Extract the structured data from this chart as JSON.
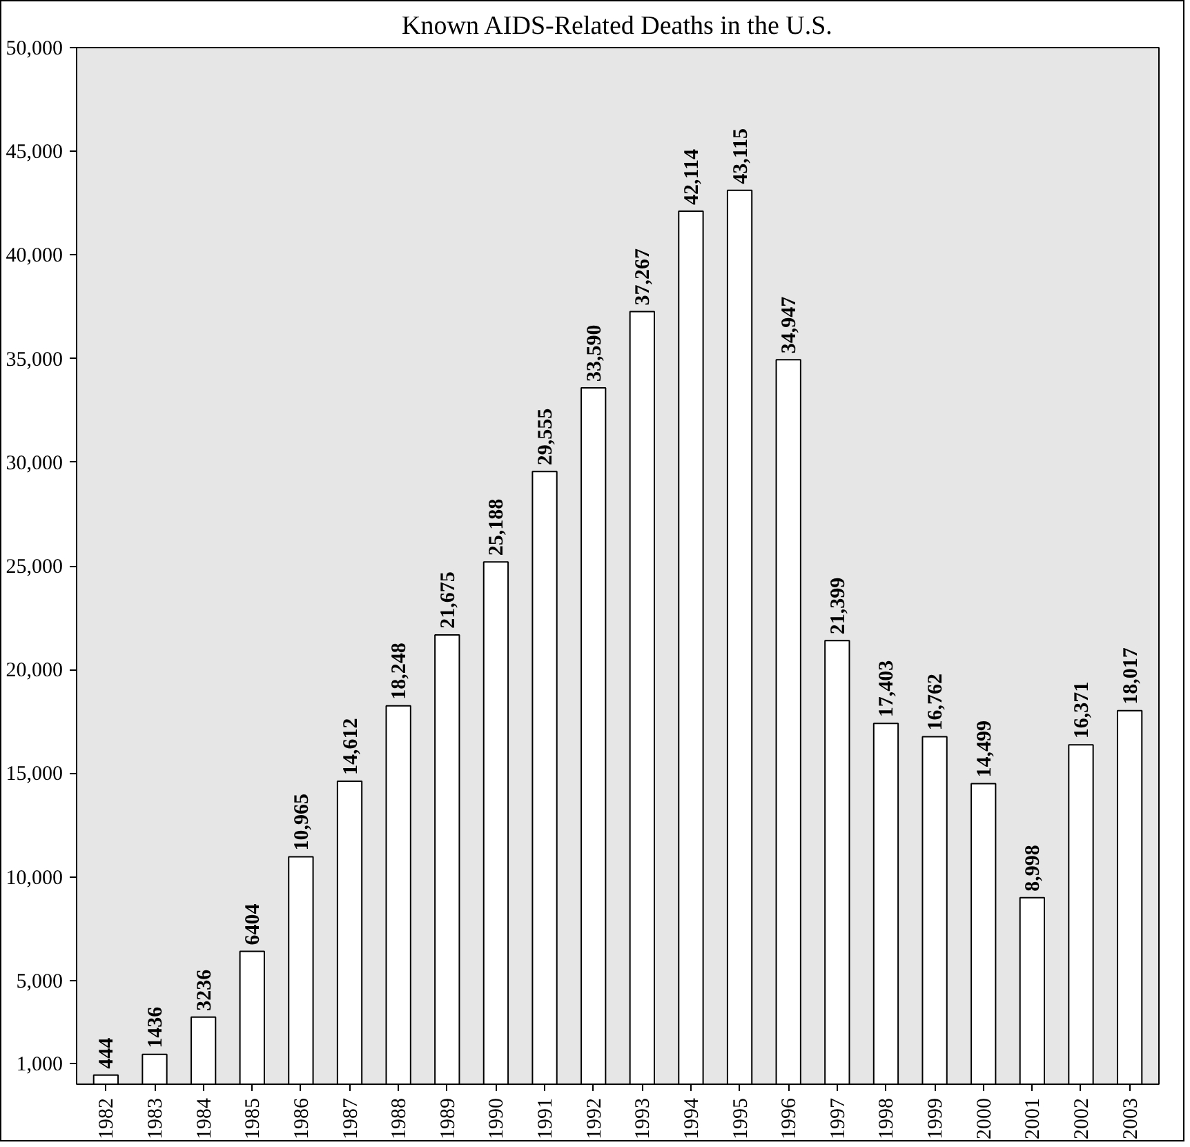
{
  "chart_data": {
    "type": "bar",
    "title": "Known AIDS-Related Deaths in the U.S.",
    "categories": [
      "1982",
      "1983",
      "1984",
      "1985",
      "1986",
      "1987",
      "1988",
      "1989",
      "1990",
      "1991",
      "1992",
      "1993",
      "1994",
      "1995",
      "1996",
      "1997",
      "1998",
      "1999",
      "2000",
      "2001",
      "2002",
      "2003"
    ],
    "values": [
      444,
      1436,
      3236,
      6404,
      10965,
      14612,
      18248,
      21675,
      25188,
      29555,
      33590,
      37267,
      42114,
      43115,
      34947,
      21399,
      17403,
      16762,
      14499,
      8998,
      16371,
      18017
    ],
    "value_labels": [
      "444",
      "1436",
      "3236",
      "6404",
      "10,965",
      "14,612",
      "18,248",
      "21,675",
      "25,188",
      "29,555",
      "33,590",
      "37,267",
      "42,114",
      "43,115",
      "34,947",
      "21,399",
      "17,403",
      "16,762",
      "14,499",
      "8,998",
      "16,371",
      "18,017"
    ],
    "color": "#ffffff",
    "ylim": [
      0,
      50000
    ],
    "yticks": [
      {
        "value": 1000,
        "label": "1,000"
      },
      {
        "value": 5000,
        "label": "5,000"
      },
      {
        "value": 10000,
        "label": "10,000"
      },
      {
        "value": 15000,
        "label": "15,000"
      },
      {
        "value": 20000,
        "label": "20,000"
      },
      {
        "value": 25000,
        "label": "25,000"
      },
      {
        "value": 30000,
        "label": "30,000"
      },
      {
        "value": 35000,
        "label": "35,000"
      },
      {
        "value": 40000,
        "label": "40,000"
      },
      {
        "value": 45000,
        "label": "45,000"
      },
      {
        "value": 50000,
        "label": "50,000"
      }
    ],
    "grid": false
  }
}
